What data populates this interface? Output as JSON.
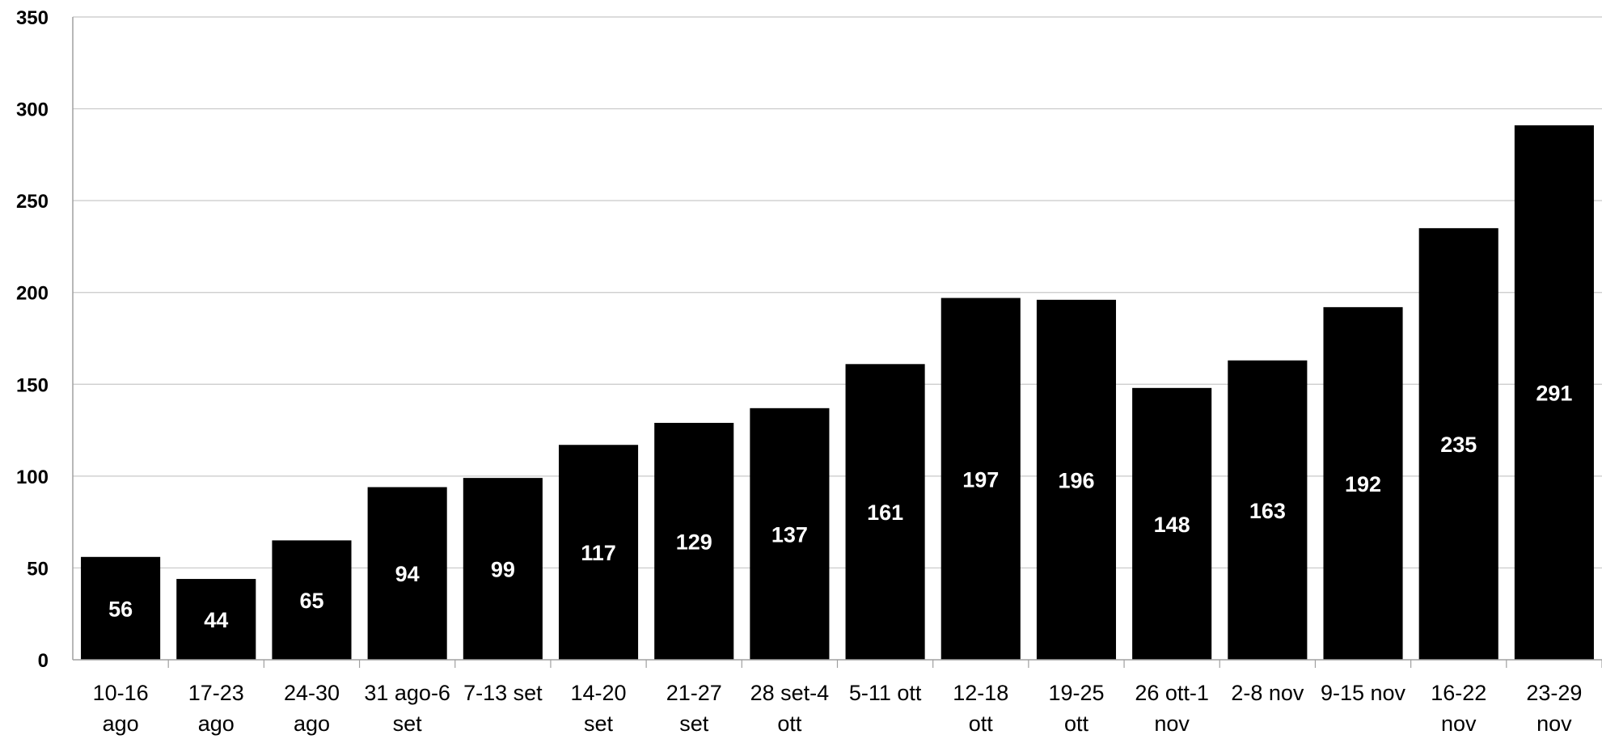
{
  "chart_data": {
    "type": "bar",
    "title": "",
    "xlabel": "",
    "ylabel": "",
    "ylim": [
      0,
      350
    ],
    "yticks": [
      0,
      50,
      100,
      150,
      200,
      250,
      300,
      350
    ],
    "grid": true,
    "legend": "none",
    "bar_color": "#000000",
    "data_label_color": "#ffffff",
    "gridline_color": "#c8c8c8",
    "categories": [
      [
        "10-16",
        "ago"
      ],
      [
        "17-23",
        "ago"
      ],
      [
        "24-30",
        "ago"
      ],
      [
        "31 ago-6",
        "set"
      ],
      [
        "7-13 set"
      ],
      [
        "14-20",
        "set"
      ],
      [
        "21-27",
        "set"
      ],
      [
        "28 set-4",
        "ott"
      ],
      [
        "5-11 ott"
      ],
      [
        "12-18",
        "ott"
      ],
      [
        "19-25",
        "ott"
      ],
      [
        "26 ott-1",
        "nov"
      ],
      [
        "2-8 nov"
      ],
      [
        "9-15 nov"
      ],
      [
        "16-22",
        "nov"
      ],
      [
        "23-29",
        "nov"
      ]
    ],
    "values": [
      56,
      44,
      65,
      94,
      99,
      117,
      129,
      137,
      161,
      197,
      196,
      148,
      163,
      192,
      235,
      291
    ]
  }
}
